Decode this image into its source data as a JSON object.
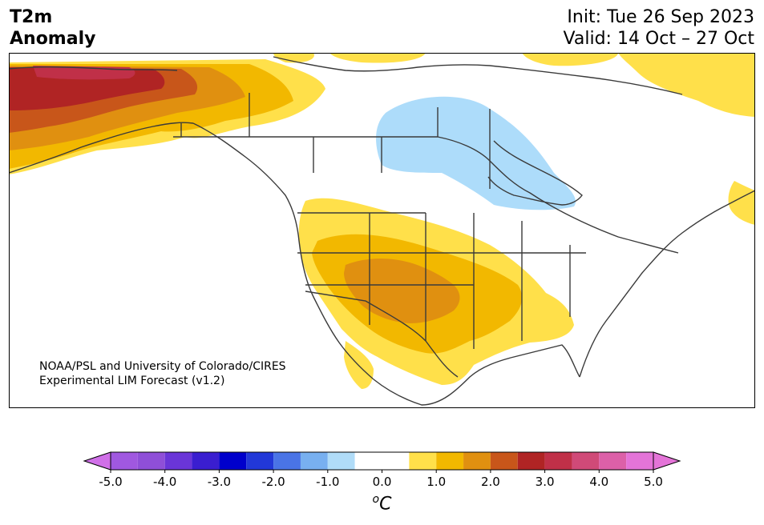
{
  "header": {
    "title_line1": "T2m",
    "title_line2": "Anomaly",
    "init_text": "Init: Tue 26 Sep 2023",
    "valid_text": "Valid: 14 Oct – 27 Oct"
  },
  "credit": {
    "line1": "NOAA/PSL and University of Colorado/CIRES",
    "line2": "Experimental LIM Forecast (v1.2)"
  },
  "colorbar": {
    "unit_prefix": "o",
    "unit_letter": "C",
    "tick_labels": [
      "-5.0",
      "-4.0",
      "-3.0",
      "-2.0",
      "-1.0",
      "0.0",
      "1.0",
      "2.0",
      "3.0",
      "4.0",
      "5.0"
    ],
    "bins": [
      {
        "from": -5.0,
        "to": -4.5,
        "color": "#a058e0"
      },
      {
        "from": -4.5,
        "to": -4.0,
        "color": "#8f4fd8"
      },
      {
        "from": -4.0,
        "to": -3.5,
        "color": "#6a35d8"
      },
      {
        "from": -3.5,
        "to": -3.0,
        "color": "#3a1ed0"
      },
      {
        "from": -3.0,
        "to": -2.5,
        "color": "#0000cc"
      },
      {
        "from": -2.5,
        "to": -2.0,
        "color": "#2238d8"
      },
      {
        "from": -2.0,
        "to": -1.5,
        "color": "#4a74e6"
      },
      {
        "from": -1.5,
        "to": -1.0,
        "color": "#78b0f0"
      },
      {
        "from": -1.0,
        "to": -0.5,
        "color": "#b0dcf8"
      },
      {
        "from": -0.5,
        "to": 0.0,
        "color": "#ffffff"
      },
      {
        "from": 0.0,
        "to": 0.5,
        "color": "#ffffff"
      },
      {
        "from": 0.5,
        "to": 1.0,
        "color": "#ffe04a"
      },
      {
        "from": 1.0,
        "to": 1.5,
        "color": "#f2b800"
      },
      {
        "from": 1.5,
        "to": 2.0,
        "color": "#e09010"
      },
      {
        "from": 2.0,
        "to": 2.5,
        "color": "#c8561a"
      },
      {
        "from": 2.5,
        "to": 3.0,
        "color": "#b02424"
      },
      {
        "from": 3.0,
        "to": 3.5,
        "color": "#c03048"
      },
      {
        "from": 3.5,
        "to": 4.0,
        "color": "#d04a78"
      },
      {
        "from": 4.0,
        "to": 4.5,
        "color": "#dc60a8"
      },
      {
        "from": 4.5,
        "to": 5.0,
        "color": "#e474d8"
      }
    ],
    "extend_low_color": "#d070e8",
    "extend_high_color": "#e474d8"
  },
  "map": {
    "land_color": "#ffffff",
    "coast_color": "#3a3a3a",
    "anomaly_colors": {
      "cool": "#addcfa",
      "warm1": "#ffe04a",
      "warm2": "#f2b800",
      "warm3": "#e09010",
      "warm4": "#c8561a",
      "warm5": "#b02424",
      "warm6": "#c03048"
    }
  }
}
